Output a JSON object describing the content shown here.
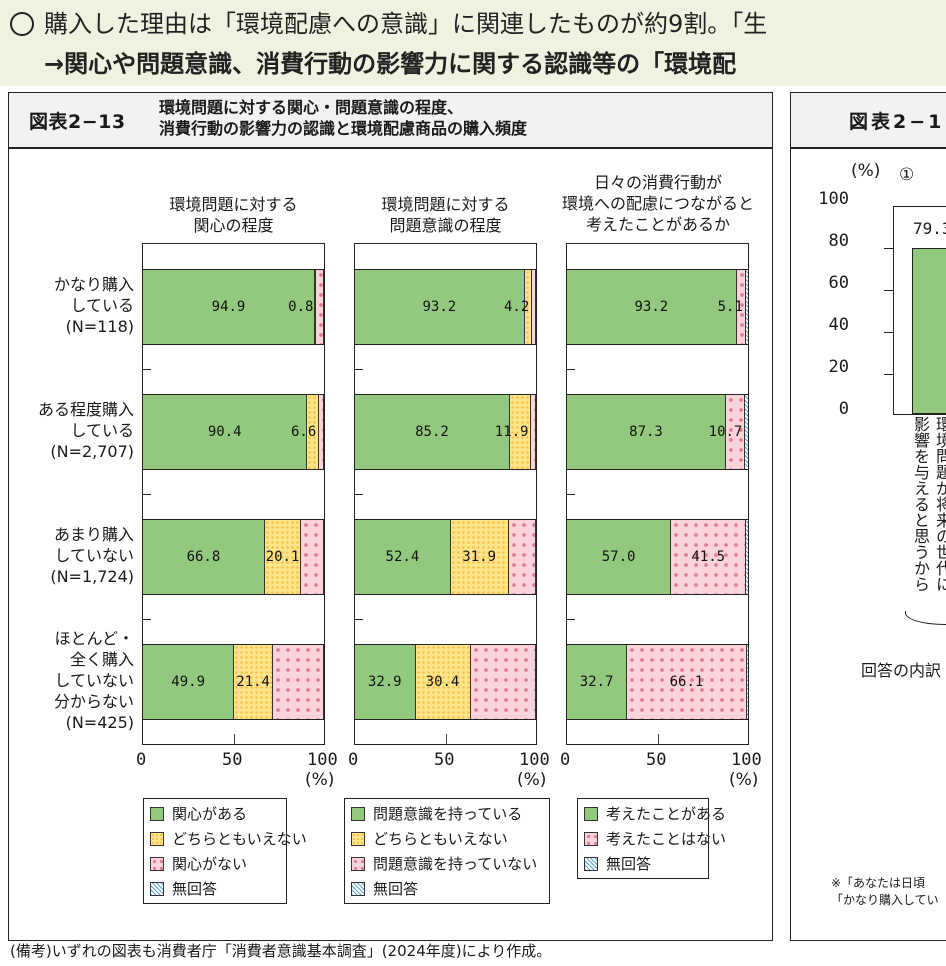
{
  "banner": {
    "line1": "購入した理由は「環境配慮への意識」に関連したものが約9割。「生",
    "line2": "→関心や問題意識、消費行動の影響力に関する認識等の「環境配"
  },
  "left_figure": {
    "number": "図表2−13",
    "title_line1": "環境問題に対する関心・問題意識の程度、",
    "title_line2": "消費行動の影響力の認識と環境配慮商品の購入頻度"
  },
  "right_figure": {
    "number": "図表2−1",
    "y_unit": "(%)",
    "subchart_marker": "①",
    "y_ticks": [
      "100",
      "80",
      "60",
      "40",
      "20",
      "0"
    ],
    "bar_value": "79.3",
    "bar_label_col1": "影響を与えると思うから",
    "bar_label_col2": "環境問題が将来の世代に",
    "breakdown_label": "回答の内訳",
    "note_line1": "※「あなたは日頃",
    "note_line2": "「かなり購入してい"
  },
  "row_labels": [
    [
      "かなり購入",
      "している",
      "(N=118)"
    ],
    [
      "ある程度購入",
      "している",
      "(N=2,707)"
    ],
    [
      "あまり購入",
      "していない",
      "(N=1,724)"
    ],
    [
      "ほとんど・",
      "全く購入",
      "していない",
      "分からない",
      "(N=425)"
    ]
  ],
  "axis": {
    "ticks": [
      "0",
      "50",
      "100"
    ],
    "unit": "(%)"
  },
  "footnote": "(備考)いずれの図表も消費者庁「消費者意識基本調査」(2024年度)により作成。",
  "colors": {
    "green": "#93c97e",
    "yellow": "#ffe58a",
    "pink": "#fbd3da",
    "blue_hatch": "#5ba6d8"
  },
  "chart_data": [
    {
      "type": "bar",
      "orientation": "horizontal-stacked-100",
      "title": "環境問題に対する関心の程度",
      "title_lines": [
        "環境問題に対する",
        "関心の程度"
      ],
      "categories": [
        "かなり購入している(N=118)",
        "ある程度購入している(N=2,707)",
        "あまり購入していない(N=1,724)",
        "ほとんど・全く購入していない分からない(N=425)"
      ],
      "series": [
        {
          "name": "関心がある",
          "values": [
            94.9,
            90.4,
            66.8,
            49.9
          ],
          "labels": [
            "94.9",
            "90.4",
            "66.8",
            "49.9"
          ]
        },
        {
          "name": "どちらともいえない",
          "values": [
            0.8,
            6.6,
            20.1,
            21.4
          ],
          "labels": [
            "0.8",
            "6.6",
            "20.1",
            "21.4"
          ]
        },
        {
          "name": "関心がない",
          "values": [
            4.2,
            2.6,
            12.6,
            28.2
          ],
          "labels": [
            "",
            "",
            "",
            ""
          ]
        },
        {
          "name": "無回答",
          "values": [
            0.1,
            0.4,
            0.5,
            0.5
          ],
          "labels": [
            "",
            "",
            "",
            ""
          ]
        }
      ],
      "xlabel": "(%)",
      "xlim": [
        0,
        100
      ],
      "xticks": [
        0,
        50,
        100
      ],
      "legend": [
        "関心がある",
        "どちらともいえない",
        "関心がない",
        "無回答"
      ]
    },
    {
      "type": "bar",
      "orientation": "horizontal-stacked-100",
      "title": "環境問題に対する問題意識の程度",
      "title_lines": [
        "環境問題に対する",
        "問題意識の程度"
      ],
      "categories": [
        "かなり購入している(N=118)",
        "ある程度購入している(N=2,707)",
        "あまり購入していない(N=1,724)",
        "ほとんど・全く購入していない分からない(N=425)"
      ],
      "series": [
        {
          "name": "問題意識を持っている",
          "values": [
            93.2,
            85.2,
            52.4,
            32.9
          ],
          "labels": [
            "93.2",
            "85.2",
            "52.4",
            "32.9"
          ]
        },
        {
          "name": "どちらともいえない",
          "values": [
            4.2,
            11.9,
            31.9,
            30.4
          ],
          "labels": [
            "4.2",
            "11.9",
            "31.9",
            "30.4"
          ]
        },
        {
          "name": "問題意識を持っていない",
          "values": [
            2.0,
            2.5,
            15.2,
            36.2
          ],
          "labels": [
            "",
            "",
            "",
            ""
          ]
        },
        {
          "name": "無回答",
          "values": [
            0.6,
            0.4,
            0.5,
            0.5
          ],
          "labels": [
            "",
            "",
            "",
            ""
          ]
        }
      ],
      "xlabel": "(%)",
      "xlim": [
        0,
        100
      ],
      "xticks": [
        0,
        50,
        100
      ],
      "legend": [
        "問題意識を持っている",
        "どちらともいえない",
        "問題意識を持っていない",
        "無回答"
      ]
    },
    {
      "type": "bar",
      "orientation": "horizontal-stacked-100",
      "title": "日々の消費行動が環境への配慮につながると考えたことがあるか",
      "title_lines": [
        "日々の消費行動が",
        "環境への配慮につながると",
        "考えたことがあるか"
      ],
      "categories": [
        "かなり購入している(N=118)",
        "ある程度購入している(N=2,707)",
        "あまり購入していない(N=1,724)",
        "ほとんど・全く購入していない分からない(N=425)"
      ],
      "series": [
        {
          "name": "考えたことがある",
          "values": [
            93.2,
            87.3,
            57.0,
            32.7
          ],
          "labels": [
            "93.2",
            "87.3",
            "57.0",
            "32.7"
          ]
        },
        {
          "name": "考えたことはない",
          "values": [
            5.1,
            10.7,
            41.5,
            66.1
          ],
          "labels": [
            "5.1",
            "10.7",
            "41.5",
            "66.1"
          ]
        },
        {
          "name": "無回答",
          "values": [
            1.7,
            2.0,
            1.5,
            1.2
          ],
          "labels": [
            "",
            "",
            "",
            ""
          ]
        }
      ],
      "xlabel": "(%)",
      "xlim": [
        0,
        100
      ],
      "xticks": [
        0,
        50,
        100
      ],
      "legend": [
        "考えたことがある",
        "考えたことはない",
        "無回答"
      ]
    },
    {
      "type": "bar",
      "title": "図表2−1 ①",
      "categories": [
        "環境問題が将来の世代に影響を与えると思うから"
      ],
      "values": [
        79.3
      ],
      "ylabel": "(%)",
      "ylim": [
        0,
        100
      ],
      "yticks": [
        0,
        20,
        40,
        60,
        80,
        100
      ]
    }
  ]
}
